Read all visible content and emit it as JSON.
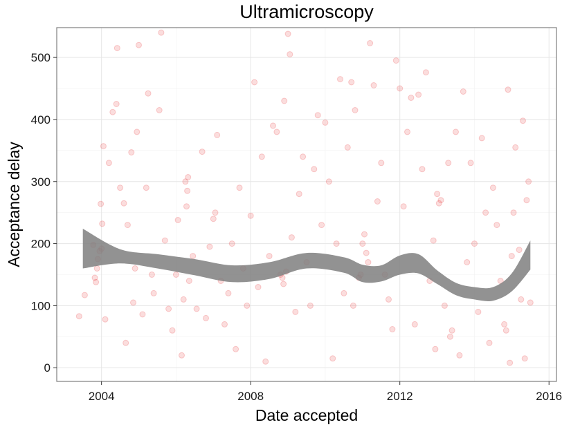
{
  "chart_data": {
    "type": "scatter",
    "title": "Ultramicroscopy",
    "xlabel": "Date accepted",
    "ylabel": "Acceptance delay",
    "x_ticks": [
      "2004",
      "2008",
      "2012",
      "2016"
    ],
    "x_tick_values": [
      2004,
      2008,
      2012,
      2016
    ],
    "y_ticks": [
      "0",
      "100",
      "200",
      "300",
      "400",
      "500"
    ],
    "y_tick_values": [
      0,
      100,
      200,
      300,
      400,
      500
    ],
    "xlim": [
      2002.8,
      2016.2
    ],
    "ylim": [
      -22,
      548
    ],
    "grid": true,
    "legend": "none",
    "point_color": "#e41a1c",
    "point_opacity": 0.15,
    "band_color": "#7f7f7f",
    "smooth": {
      "x": [
        2003.5,
        2004.5,
        2005.5,
        2006.5,
        2007.5,
        2008.5,
        2009.5,
        2010.5,
        2011.0,
        2011.5,
        2012.0,
        2012.5,
        2013.0,
        2013.5,
        2014.0,
        2014.5,
        2015.0,
        2015.5
      ],
      "lower": [
        160,
        168,
        160,
        149,
        138,
        143,
        160,
        153,
        138,
        139,
        150,
        152,
        135,
        117,
        110,
        108,
        123,
        158
      ],
      "upper": [
        224,
        191,
        183,
        175,
        165,
        170,
        185,
        178,
        166,
        165,
        181,
        183,
        157,
        137,
        130,
        130,
        152,
        205
      ]
    },
    "points": [
      [
        2003.4,
        83
      ],
      [
        2003.55,
        117
      ],
      [
        2003.78,
        198
      ],
      [
        2003.82,
        145
      ],
      [
        2003.85,
        138
      ],
      [
        2003.88,
        160
      ],
      [
        2003.9,
        175
      ],
      [
        2003.95,
        188
      ],
      [
        2003.98,
        264
      ],
      [
        2004.0,
        192
      ],
      [
        2004.02,
        232
      ],
      [
        2004.05,
        357
      ],
      [
        2004.1,
        78
      ],
      [
        2004.2,
        330
      ],
      [
        2004.3,
        412
      ],
      [
        2004.4,
        425
      ],
      [
        2004.42,
        515
      ],
      [
        2004.5,
        290
      ],
      [
        2004.6,
        265
      ],
      [
        2004.65,
        40
      ],
      [
        2004.7,
        230
      ],
      [
        2004.8,
        347
      ],
      [
        2004.85,
        105
      ],
      [
        2004.9,
        160
      ],
      [
        2004.95,
        380
      ],
      [
        2005.0,
        520
      ],
      [
        2005.1,
        86
      ],
      [
        2005.2,
        290
      ],
      [
        2005.25,
        442
      ],
      [
        2005.35,
        150
      ],
      [
        2005.4,
        120
      ],
      [
        2005.55,
        415
      ],
      [
        2005.6,
        540
      ],
      [
        2005.7,
        205
      ],
      [
        2005.8,
        95
      ],
      [
        2005.9,
        60
      ],
      [
        2006.0,
        150
      ],
      [
        2006.05,
        238
      ],
      [
        2006.15,
        20
      ],
      [
        2006.2,
        110
      ],
      [
        2006.25,
        300
      ],
      [
        2006.28,
        260
      ],
      [
        2006.3,
        285
      ],
      [
        2006.32,
        307
      ],
      [
        2006.35,
        140
      ],
      [
        2006.45,
        180
      ],
      [
        2006.55,
        95
      ],
      [
        2006.7,
        348
      ],
      [
        2006.8,
        80
      ],
      [
        2006.9,
        195
      ],
      [
        2007.0,
        240
      ],
      [
        2007.05,
        250
      ],
      [
        2007.1,
        375
      ],
      [
        2007.2,
        140
      ],
      [
        2007.3,
        70
      ],
      [
        2007.4,
        120
      ],
      [
        2007.5,
        200
      ],
      [
        2007.6,
        30
      ],
      [
        2007.7,
        290
      ],
      [
        2007.8,
        160
      ],
      [
        2007.9,
        100
      ],
      [
        2008.0,
        245
      ],
      [
        2008.1,
        460
      ],
      [
        2008.2,
        130
      ],
      [
        2008.3,
        340
      ],
      [
        2008.4,
        10
      ],
      [
        2008.5,
        180
      ],
      [
        2008.6,
        390
      ],
      [
        2008.7,
        380
      ],
      [
        2008.8,
        150
      ],
      [
        2008.85,
        145
      ],
      [
        2008.88,
        135
      ],
      [
        2008.9,
        430
      ],
      [
        2008.95,
        155
      ],
      [
        2009.0,
        538
      ],
      [
        2009.05,
        505
      ],
      [
        2009.1,
        210
      ],
      [
        2009.2,
        90
      ],
      [
        2009.3,
        280
      ],
      [
        2009.4,
        340
      ],
      [
        2009.5,
        170
      ],
      [
        2009.6,
        100
      ],
      [
        2009.7,
        320
      ],
      [
        2009.8,
        407
      ],
      [
        2009.9,
        230
      ],
      [
        2010.0,
        395
      ],
      [
        2010.1,
        300
      ],
      [
        2010.2,
        15
      ],
      [
        2010.3,
        200
      ],
      [
        2010.4,
        465
      ],
      [
        2010.5,
        120
      ],
      [
        2010.6,
        355
      ],
      [
        2010.7,
        460
      ],
      [
        2010.75,
        100
      ],
      [
        2010.8,
        415
      ],
      [
        2010.9,
        145
      ],
      [
        2010.95,
        150
      ],
      [
        2011.0,
        200
      ],
      [
        2011.05,
        215
      ],
      [
        2011.1,
        185
      ],
      [
        2011.15,
        170
      ],
      [
        2011.2,
        523
      ],
      [
        2011.3,
        455
      ],
      [
        2011.4,
        268
      ],
      [
        2011.5,
        330
      ],
      [
        2011.6,
        150
      ],
      [
        2011.7,
        110
      ],
      [
        2011.8,
        62
      ],
      [
        2011.9,
        495
      ],
      [
        2012.0,
        450
      ],
      [
        2012.1,
        260
      ],
      [
        2012.2,
        380
      ],
      [
        2012.3,
        435
      ],
      [
        2012.4,
        70
      ],
      [
        2012.5,
        440
      ],
      [
        2012.6,
        320
      ],
      [
        2012.7,
        476
      ],
      [
        2012.8,
        140
      ],
      [
        2012.9,
        205
      ],
      [
        2012.95,
        30
      ],
      [
        2013.0,
        280
      ],
      [
        2013.05,
        265
      ],
      [
        2013.1,
        270
      ],
      [
        2013.2,
        100
      ],
      [
        2013.3,
        330
      ],
      [
        2013.35,
        50
      ],
      [
        2013.4,
        60
      ],
      [
        2013.5,
        380
      ],
      [
        2013.6,
        20
      ],
      [
        2013.7,
        445
      ],
      [
        2013.8,
        170
      ],
      [
        2013.9,
        330
      ],
      [
        2014.0,
        200
      ],
      [
        2014.1,
        90
      ],
      [
        2014.2,
        370
      ],
      [
        2014.3,
        250
      ],
      [
        2014.4,
        40
      ],
      [
        2014.5,
        290
      ],
      [
        2014.6,
        230
      ],
      [
        2014.7,
        140
      ],
      [
        2014.8,
        70
      ],
      [
        2014.85,
        60
      ],
      [
        2014.9,
        448
      ],
      [
        2014.95,
        8
      ],
      [
        2015.0,
        180
      ],
      [
        2015.05,
        250
      ],
      [
        2015.1,
        355
      ],
      [
        2015.2,
        190
      ],
      [
        2015.25,
        110
      ],
      [
        2015.3,
        398
      ],
      [
        2015.35,
        15
      ],
      [
        2015.4,
        270
      ],
      [
        2015.45,
        300
      ],
      [
        2015.5,
        105
      ]
    ]
  }
}
